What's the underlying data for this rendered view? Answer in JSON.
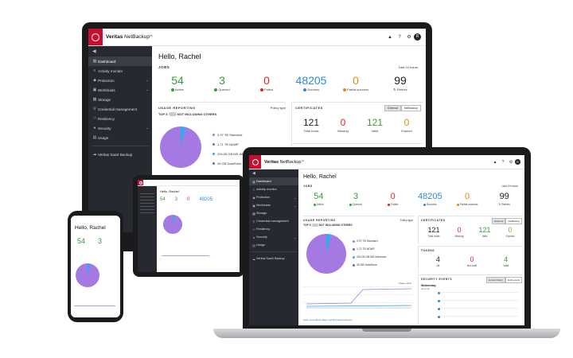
{
  "app": {
    "brand_name": "Veritas",
    "product_name": "NetBackup",
    "brand_suffix": "™",
    "greeting": "Hello, Rachel",
    "avatar_initial": "R",
    "accent_color": "#c8102e",
    "sidebar_color": "#262a30"
  },
  "nav": {
    "dashboard": "Dashboard",
    "activity_monitor": "Activity monitor",
    "protection": "Protection",
    "workloads": "Workloads",
    "storage": "Storage",
    "credential_management": "Credential management",
    "resiliency": "Resiliency",
    "security": "Security",
    "usage": "Usage",
    "saas_backup": "Veritas SaaS Backup"
  },
  "jobs": {
    "title": "JOBS",
    "range": "Last 24 hours",
    "active": {
      "value": "54",
      "label": "Active"
    },
    "queued": {
      "value": "3",
      "label": "Queued"
    },
    "failed": {
      "value": "0",
      "label": "Failed"
    },
    "success": {
      "value": "48205",
      "label": "Success"
    },
    "partial": {
      "value": "0",
      "label": "Partial success"
    },
    "retries": {
      "value": "99",
      "label": "Retries"
    }
  },
  "usage": {
    "title": "USAGE REPORTING",
    "policy_type": "Policy type",
    "top_label": "TOP 5",
    "toggle_label": "NOT INCLUDING OTHERS",
    "legend": [
      {
        "value": "3.97 TB",
        "name": "Standard",
        "color": "#a47ae2"
      },
      {
        "value": "1.71 TB",
        "name": "NDMP",
        "color": "#7b5fc7"
      },
      {
        "value": "294.05 GB",
        "name": "MS-Windows",
        "color": "#33a9f0"
      },
      {
        "value": "49 GB",
        "name": "DataStore",
        "color": "#6b6f76"
      }
    ],
    "chart_link": "Learn more about usage reporting and trend lines",
    "chart_legend": "Usage metric"
  },
  "certificates": {
    "title": "CERTIFICATES",
    "tab_external": "External",
    "tab_netbackup": "NetBackup",
    "total": {
      "value": "121",
      "label": "Total hosts"
    },
    "missing": {
      "value": "0",
      "label": "Missing"
    },
    "valid": {
      "value": "121",
      "label": "Valid"
    },
    "expired": {
      "value": "0",
      "label": "Expired"
    }
  },
  "tokens": {
    "title": "TOKENS",
    "all": {
      "value": "4",
      "label": "All"
    },
    "not_valid": {
      "value": "0",
      "label": "Not valid"
    },
    "valid": {
      "value": "4",
      "label": "Valid"
    }
  },
  "security_events": {
    "title": "SECURITY EVENTS",
    "tab_access": "Access history",
    "tab_audit": "Audit events",
    "day": "Wednesday",
    "date": "June 10"
  },
  "phone": {
    "greeting": "Hello, Rachel",
    "active": "54",
    "queued": "3"
  }
}
